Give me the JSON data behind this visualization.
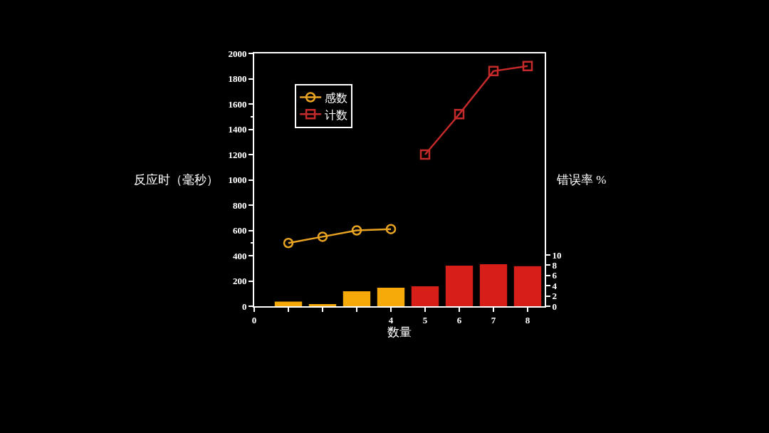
{
  "chart_data": {
    "type": "line",
    "xlabel": "数量",
    "ylabel": "反应时（毫秒）",
    "y2label": "错误率 %",
    "xlim": [
      0,
      8.5
    ],
    "xticks": [
      0,
      {
        "value": 1,
        "label": null
      },
      {
        "value": 2,
        "label": null
      },
      {
        "value": 3,
        "label": null
      },
      4,
      5,
      6,
      7,
      8
    ],
    "ylim": [
      0,
      2000
    ],
    "yticks": [
      0,
      200,
      400,
      600,
      800,
      1000,
      1200,
      1400,
      1600,
      1800,
      2000
    ],
    "y2lim": [
      0,
      49.3
    ],
    "y2ticks": [
      0,
      2,
      4,
      6,
      8,
      10
    ],
    "series": [
      {
        "type": "bar",
        "axis": "y2",
        "x": [
          1,
          2,
          3,
          4,
          5,
          6,
          7,
          8
        ],
        "values": [
          0.9,
          0.4,
          2.9,
          3.6,
          3.9,
          7.9,
          8.2,
          7.8
        ],
        "colors": [
          "#f5aa0a",
          "#f5aa0a",
          "#f5aa0a",
          "#f5aa0a",
          "#d81e18",
          "#d81e18",
          "#d81e18",
          "#d81e18"
        ]
      },
      {
        "name": "感数",
        "color": "#e8a323",
        "marker": "circle",
        "x": [
          1,
          2,
          3,
          4
        ],
        "values": [
          500,
          550,
          600,
          610
        ]
      },
      {
        "name": "计数",
        "color": "#c42a2a",
        "marker": "square",
        "x": [
          5,
          6,
          7,
          8
        ],
        "values": [
          1200,
          1520,
          1860,
          1900
        ]
      }
    ],
    "legend": "top left",
    "grid": false,
    "line_style": "solid"
  }
}
